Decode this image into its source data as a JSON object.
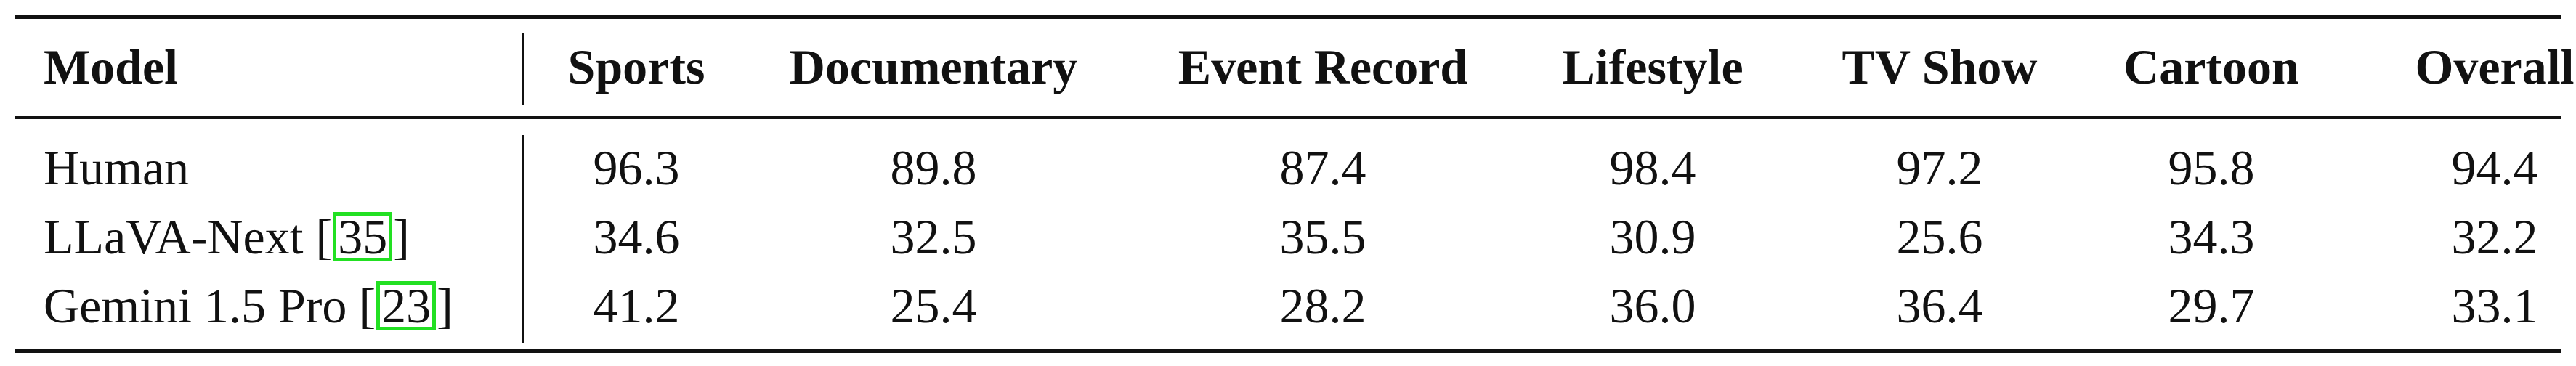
{
  "table": {
    "headers": [
      "Model",
      "Sports",
      "Documentary",
      "Event Record",
      "Lifestyle",
      "TV Show",
      "Cartoon",
      "Overall"
    ],
    "rows": [
      {
        "model": "Human",
        "cite": "",
        "values": [
          "96.3",
          "89.8",
          "87.4",
          "98.4",
          "97.2",
          "95.8",
          "94.4"
        ]
      },
      {
        "model": "LLaVA-Next",
        "cite": "35",
        "values": [
          "34.6",
          "32.5",
          "35.5",
          "30.9",
          "25.6",
          "34.3",
          "32.2"
        ]
      },
      {
        "model": "Gemini 1.5 Pro",
        "cite": "23",
        "values": [
          "41.2",
          "25.4",
          "28.2",
          "36.0",
          "36.4",
          "29.7",
          "33.1"
        ]
      }
    ],
    "citation_box_color": "#22e022"
  }
}
